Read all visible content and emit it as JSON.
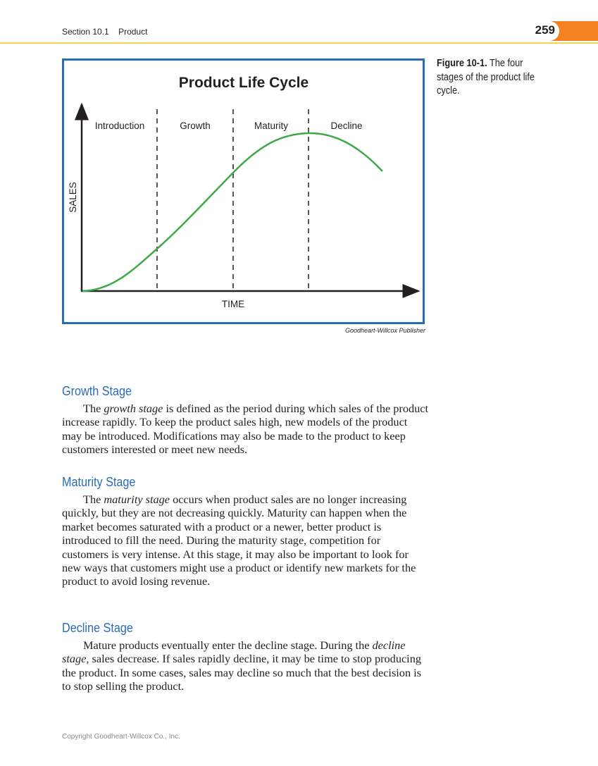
{
  "header": {
    "section": "Section 10.1",
    "chapter": "Product",
    "page_number": "259"
  },
  "figure": {
    "caption_label": "Figure 10-1.",
    "caption_text": " The four stages of the product life cycle.",
    "title": "Product Life Cycle",
    "stages": [
      "Introduction",
      "Growth",
      "Maturity",
      "Decline"
    ],
    "y_axis_label": "SALES",
    "x_axis_label": "TIME",
    "credit": "Goodheart-Willcox Publisher",
    "colors": {
      "frame": "#2a6db5",
      "curve": "#3daa47",
      "axes": "#231f20"
    }
  },
  "sections": [
    {
      "heading": "Growth Stage",
      "pre": "The ",
      "term": "growth stage",
      "post": " is defined as the period during which sales of the product increase rapidly. To keep the product sales high, new models of the product may be introduced. Modifications may also be made to the product to keep customers interested or meet new needs."
    },
    {
      "heading": "Maturity Stage",
      "pre": "The ",
      "term": "maturity stage",
      "post": " occurs when product sales are no longer increasing quickly, but they are not decreasing quickly. Maturity can happen when the market becomes saturated with a product or a newer, better product is introduced to fill the need. During the maturity stage, competition for customers is very intense. At this stage, it may also be important to look for new ways that customers might use a product or identify new markets for the product to avoid losing revenue."
    },
    {
      "heading": "Decline Stage",
      "pre": "Mature products eventually enter the decline stage. During the ",
      "term": "decline stage,",
      "post": " sales decrease. If sales rapidly decline, it may be time to stop producing the product. In some cases, sales may decline so much that the best decision is to stop selling the product."
    }
  ],
  "footer": {
    "copyright": "Copyright Goodheart-Willcox Co., Inc."
  }
}
